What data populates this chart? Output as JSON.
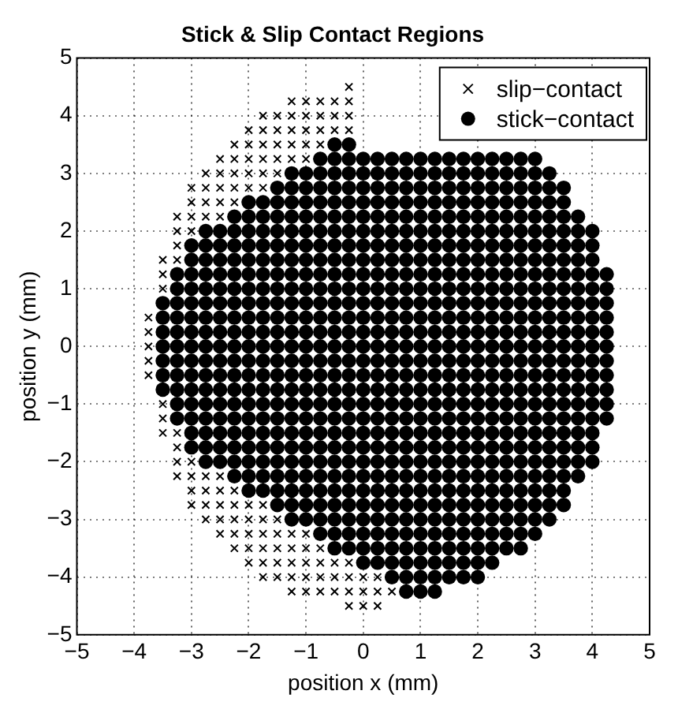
{
  "chart_data": {
    "type": "scatter",
    "title": "Stick & Slip Contact Regions",
    "xlabel": "position x (mm)",
    "ylabel": "position y (mm)",
    "xlim": [
      -5,
      5
    ],
    "ylim": [
      -5,
      5
    ],
    "xticks": [
      -5,
      -4,
      -3,
      -2,
      -1,
      0,
      1,
      2,
      3,
      4,
      5
    ],
    "yticks": [
      -5,
      -4,
      -3,
      -2,
      -1,
      0,
      1,
      2,
      3,
      4,
      5
    ],
    "grid": true,
    "legend": "top right",
    "series": [
      {
        "name": "slip−contact",
        "color": "#000000",
        "marker": "cross",
        "x": [
          -0.25,
          -1.25,
          -1,
          -0.75,
          -0.5,
          -0.25,
          -1.75,
          -1.5,
          -1.25,
          -1,
          -0.75,
          -0.5,
          -0.25,
          -2,
          -1.75,
          -1.5,
          -1.25,
          -1,
          -0.75,
          -0.5,
          -0.25,
          -2.25,
          -2,
          -1.75,
          -1.5,
          -1.25,
          -1,
          -0.75,
          -2.5,
          -2.25,
          -2,
          -1.75,
          -1.5,
          -1.25,
          -1,
          -2.75,
          -2.5,
          -2.25,
          -2,
          -1.75,
          -1.5,
          -3,
          -2.75,
          -2.5,
          -2.25,
          -2,
          -1.75,
          -3,
          -2.75,
          -2.5,
          -2.25,
          -3.25,
          -3,
          -2.75,
          -2.5,
          -3.25,
          -3,
          -3.25,
          -3.5,
          -3.25,
          -3.5,
          -3.5,
          -3.75,
          -3.75,
          -3.75,
          -3.75,
          -3.75,
          -3.5,
          -3.5,
          -3.5,
          -3.25,
          -3.25,
          -3.25,
          -3,
          -3.25,
          -3,
          -2.75,
          -2.5,
          -3,
          -2.75,
          -2.5,
          -2.25,
          -3,
          -2.75,
          -2.5,
          -2.25,
          -2,
          -1.75,
          -2.75,
          -2.5,
          -2.25,
          -2,
          -1.75,
          -1.5,
          -2.5,
          -2.25,
          -2,
          -1.75,
          -1.5,
          -1.25,
          -1,
          -2.25,
          -2,
          -1.75,
          -1.5,
          -1.25,
          -1,
          -0.75,
          -2,
          -1.75,
          -1.5,
          -1.25,
          -1,
          -0.75,
          -0.5,
          -0.25,
          -1.75,
          -1.5,
          -1.25,
          -1,
          -0.75,
          -0.5,
          -0.25,
          0,
          0.25,
          -1.25,
          -1,
          -0.75,
          -0.5,
          -0.25,
          0,
          0.25,
          0.5,
          -0.25,
          0,
          0.25
        ],
        "values": [
          4.5,
          4.25,
          4.25,
          4.25,
          4.25,
          4.25,
          4,
          4,
          4,
          4,
          4,
          4,
          4,
          3.75,
          3.75,
          3.75,
          3.75,
          3.75,
          3.75,
          3.75,
          3.75,
          3.5,
          3.5,
          3.5,
          3.5,
          3.5,
          3.5,
          3.5,
          3.25,
          3.25,
          3.25,
          3.25,
          3.25,
          3.25,
          3.25,
          3,
          3,
          3,
          3,
          3,
          3,
          2.75,
          2.75,
          2.75,
          2.75,
          2.75,
          2.75,
          2.5,
          2.5,
          2.5,
          2.5,
          2.25,
          2.25,
          2.25,
          2.25,
          2,
          2,
          1.75,
          1.5,
          1.5,
          1.25,
          1,
          0.5,
          0.25,
          0,
          -0.25,
          -0.5,
          -1,
          -1.25,
          -1.5,
          -1.5,
          -1.75,
          -2,
          -2,
          -2.25,
          -2.25,
          -2.25,
          -2.25,
          -2.5,
          -2.5,
          -2.5,
          -2.5,
          -2.75,
          -2.75,
          -2.75,
          -2.75,
          -2.75,
          -2.75,
          -3,
          -3,
          -3,
          -3,
          -3,
          -3,
          -3.25,
          -3.25,
          -3.25,
          -3.25,
          -3.25,
          -3.25,
          -3.25,
          -3.5,
          -3.5,
          -3.5,
          -3.5,
          -3.5,
          -3.5,
          -3.5,
          -3.75,
          -3.75,
          -3.75,
          -3.75,
          -3.75,
          -3.75,
          -3.75,
          -3.75,
          -4,
          -4,
          -4,
          -4,
          -4,
          -4,
          -4,
          -4,
          -4,
          -4.25,
          -4.25,
          -4.25,
          -4.25,
          -4.25,
          -4.25,
          -4.25,
          -4.25,
          -4.5,
          -4.5,
          -4.5
        ]
      },
      {
        "name": "stick−contact",
        "color": "#000000",
        "marker": "circle",
        "x": [
          -0.5,
          -0.25,
          -0.75,
          -0.5,
          -0.25,
          0,
          0.25,
          0.5,
          0.75,
          1,
          1.25,
          1.5,
          1.75,
          2,
          2.25,
          2.5,
          2.75,
          3,
          -1.25,
          -1,
          -0.75,
          -0.5,
          -0.25,
          0,
          0.25,
          0.5,
          0.75,
          1,
          1.25,
          1.5,
          1.75,
          2,
          2.25,
          2.5,
          2.75,
          3,
          3.25,
          -1.5,
          -1.25,
          -1,
          -0.75,
          -0.5,
          -0.25,
          0,
          0.25,
          0.5,
          0.75,
          1,
          1.25,
          1.5,
          1.75,
          2,
          2.25,
          2.5,
          2.75,
          3,
          3.25,
          3.5,
          -2,
          -1.75,
          -1.5,
          -1.25,
          -1,
          -0.75,
          -0.5,
          -0.25,
          0,
          0.25,
          0.5,
          0.75,
          1,
          1.25,
          1.5,
          1.75,
          2,
          2.25,
          2.5,
          2.75,
          3,
          3.25,
          3.5,
          -2.25,
          -2,
          -1.75,
          -1.5,
          -1.25,
          -1,
          -0.75,
          -0.5,
          -0.25,
          0,
          0.25,
          0.5,
          0.75,
          1,
          1.25,
          1.5,
          1.75,
          2,
          2.25,
          2.5,
          2.75,
          3,
          3.25,
          3.5,
          3.75,
          -2.75,
          -2.5,
          -2.25,
          -2,
          -1.75,
          -1.5,
          -1.25,
          -1,
          -0.75,
          -0.5,
          -0.25,
          0,
          0.25,
          0.5,
          0.75,
          1,
          1.25,
          1.5,
          1.75,
          2,
          2.25,
          2.5,
          2.75,
          3,
          3.25,
          3.5,
          3.75,
          4,
          -3,
          -2.75,
          -2.5,
          -2.25,
          -2,
          -1.75,
          -1.5,
          -1.25,
          -1,
          -0.75,
          -0.5,
          -0.25,
          0,
          0.25,
          0.5,
          0.75,
          1,
          1.25,
          1.5,
          1.75,
          2,
          2.25,
          2.5,
          2.75,
          3,
          3.25,
          3.5,
          3.75,
          4,
          -3,
          -2.75,
          -2.5,
          -2.25,
          -2,
          -1.75,
          -1.5,
          -1.25,
          -1,
          -0.75,
          -0.5,
          -0.25,
          0,
          0.25,
          0.5,
          0.75,
          1,
          1.25,
          1.5,
          1.75,
          2,
          2.25,
          2.5,
          2.75,
          3,
          3.25,
          3.5,
          3.75,
          4,
          -3.25,
          -3,
          -2.75,
          -2.5,
          -2.25,
          -2,
          -1.75,
          -1.5,
          -1.25,
          -1,
          -0.75,
          -0.5,
          -0.25,
          0,
          0.25,
          0.5,
          0.75,
          1,
          1.25,
          1.5,
          1.75,
          2,
          2.25,
          2.5,
          2.75,
          3,
          3.25,
          3.5,
          3.75,
          4,
          4.25,
          -3.25,
          -3,
          -2.75,
          -2.5,
          -2.25,
          -2,
          -1.75,
          -1.5,
          -1.25,
          -1,
          -0.75,
          -0.5,
          -0.25,
          0,
          0.25,
          0.5,
          0.75,
          1,
          1.25,
          1.5,
          1.75,
          2,
          2.25,
          2.5,
          2.75,
          3,
          3.25,
          3.5,
          3.75,
          4,
          4.25,
          -3.5,
          -3.25,
          -3,
          -2.75,
          -2.5,
          -2.25,
          -2,
          -1.75,
          -1.5,
          -1.25,
          -1,
          -0.75,
          -0.5,
          -0.25,
          0,
          0.25,
          0.5,
          0.75,
          1,
          1.25,
          1.5,
          1.75,
          2,
          2.25,
          2.5,
          2.75,
          3,
          3.25,
          3.5,
          3.75,
          4,
          4.25,
          -3.5,
          -3.25,
          -3,
          -2.75,
          -2.5,
          -2.25,
          -2,
          -1.75,
          -1.5,
          -1.25,
          -1,
          -0.75,
          -0.5,
          -0.25,
          0,
          0.25,
          0.5,
          0.75,
          1,
          1.25,
          1.5,
          1.75,
          2,
          2.25,
          2.5,
          2.75,
          3,
          3.25,
          3.5,
          3.75,
          4,
          4.25,
          -3.5,
          -3.25,
          -3,
          -2.75,
          -2.5,
          -2.25,
          -2,
          -1.75,
          -1.5,
          -1.25,
          -1,
          -0.75,
          -0.5,
          -0.25,
          0,
          0.25,
          0.5,
          0.75,
          1,
          1.25,
          1.5,
          1.75,
          2,
          2.25,
          2.5,
          2.75,
          3,
          3.25,
          3.5,
          3.75,
          4,
          4.25,
          -3.5,
          -3.25,
          -3,
          -2.75,
          -2.5,
          -2.25,
          -2,
          -1.75,
          -1.5,
          -1.25,
          -1,
          -0.75,
          -0.5,
          -0.25,
          0,
          0.25,
          0.5,
          0.75,
          1,
          1.25,
          1.5,
          1.75,
          2,
          2.25,
          2.5,
          2.75,
          3,
          3.25,
          3.5,
          3.75,
          4,
          4.25,
          -3.5,
          -3.25,
          -3,
          -2.75,
          -2.5,
          -2.25,
          -2,
          -1.75,
          -1.5,
          -1.25,
          -1,
          -0.75,
          -0.5,
          -0.25,
          0,
          0.25,
          0.5,
          0.75,
          1,
          1.25,
          1.5,
          1.75,
          2,
          2.25,
          2.5,
          2.75,
          3,
          3.25,
          3.5,
          3.75,
          4,
          4.25,
          -3.5,
          -3.25,
          -3,
          -2.75,
          -2.5,
          -2.25,
          -2,
          -1.75,
          -1.5,
          -1.25,
          -1,
          -0.75,
          -0.5,
          -0.25,
          0,
          0.25,
          0.5,
          0.75,
          1,
          1.25,
          1.5,
          1.75,
          2,
          2.25,
          2.5,
          2.75,
          3,
          3.25,
          3.5,
          3.75,
          4,
          4.25,
          -3.5,
          -3.25,
          -3,
          -2.75,
          -2.5,
          -2.25,
          -2,
          -1.75,
          -1.5,
          -1.25,
          -1,
          -0.75,
          -0.5,
          -0.25,
          0,
          0.25,
          0.5,
          0.75,
          1,
          1.25,
          1.5,
          1.75,
          2,
          2.25,
          2.5,
          2.75,
          3,
          3.25,
          3.5,
          3.75,
          4,
          4.25,
          -3.25,
          -3,
          -2.75,
          -2.5,
          -2.25,
          -2,
          -1.75,
          -1.5,
          -1.25,
          -1,
          -0.75,
          -0.5,
          -0.25,
          0,
          0.25,
          0.5,
          0.75,
          1,
          1.25,
          1.5,
          1.75,
          2,
          2.25,
          2.5,
          2.75,
          3,
          3.25,
          3.5,
          3.75,
          4,
          4.25,
          -3.25,
          -3,
          -2.75,
          -2.5,
          -2.25,
          -2,
          -1.75,
          -1.5,
          -1.25,
          -1,
          -0.75,
          -0.5,
          -0.25,
          0,
          0.25,
          0.5,
          0.75,
          1,
          1.25,
          1.5,
          1.75,
          2,
          2.25,
          2.5,
          2.75,
          3,
          3.25,
          3.5,
          3.75,
          4,
          4.25,
          -3,
          -2.75,
          -2.5,
          -2.25,
          -2,
          -1.75,
          -1.5,
          -1.25,
          -1,
          -0.75,
          -0.5,
          -0.25,
          0,
          0.25,
          0.5,
          0.75,
          1,
          1.25,
          1.5,
          1.75,
          2,
          2.25,
          2.5,
          2.75,
          3,
          3.25,
          3.5,
          3.75,
          4,
          -3,
          -2.75,
          -2.5,
          -2.25,
          -2,
          -1.75,
          -1.5,
          -1.25,
          -1,
          -0.75,
          -0.5,
          -0.25,
          0,
          0.25,
          0.5,
          0.75,
          1,
          1.25,
          1.5,
          1.75,
          2,
          2.25,
          2.5,
          2.75,
          3,
          3.25,
          3.5,
          3.75,
          4,
          -2.75,
          -2.5,
          -2.25,
          -2,
          -1.75,
          -1.5,
          -1.25,
          -1,
          -0.75,
          -0.5,
          -0.25,
          0,
          0.25,
          0.5,
          0.75,
          1,
          1.25,
          1.5,
          1.75,
          2,
          2.25,
          2.5,
          2.75,
          3,
          3.25,
          3.5,
          3.75,
          4,
          -2.25,
          -2,
          -1.75,
          -1.5,
          -1.25,
          -1,
          -0.75,
          -0.5,
          -0.25,
          0,
          0.25,
          0.5,
          0.75,
          1,
          1.25,
          1.5,
          1.75,
          2,
          2.25,
          2.5,
          2.75,
          3,
          3.25,
          3.5,
          3.75,
          -2,
          -1.75,
          -1.5,
          -1.25,
          -1,
          -0.75,
          -0.5,
          -0.25,
          0,
          0.25,
          0.5,
          0.75,
          1,
          1.25,
          1.5,
          1.75,
          2,
          2.25,
          2.5,
          2.75,
          3,
          3.25,
          3.5,
          -1.5,
          -1.25,
          -1,
          -0.75,
          -0.5,
          -0.25,
          0,
          0.25,
          0.5,
          0.75,
          1,
          1.25,
          1.5,
          1.75,
          2,
          2.25,
          2.5,
          2.75,
          3,
          3.25,
          3.5,
          -1.25,
          -1,
          -0.75,
          -0.5,
          -0.25,
          0,
          0.25,
          0.5,
          0.75,
          1,
          1.25,
          1.5,
          1.75,
          2,
          2.25,
          2.5,
          2.75,
          3,
          3.25,
          -0.75,
          -0.5,
          -0.25,
          0,
          0.25,
          0.5,
          0.75,
          1,
          1.25,
          1.5,
          1.75,
          2,
          2.25,
          2.5,
          2.75,
          3,
          -0.5,
          -0.25,
          0,
          0.25,
          0.5,
          0.75,
          1,
          1.25,
          1.5,
          1.75,
          2,
          2.25,
          2.5,
          2.75,
          0,
          0.25,
          0.5,
          0.75,
          1,
          1.25,
          1.5,
          1.75,
          2,
          2.25,
          0.5,
          0.75,
          1,
          1.25,
          1.5,
          1.75,
          2,
          0.75,
          1,
          1.25
        ],
        "values": [
          3.5,
          3.5,
          3.25,
          3.25,
          3.25,
          3.25,
          3.25,
          3.25,
          3.25,
          3.25,
          3.25,
          3.25,
          3.25,
          3.25,
          3.25,
          3.25,
          3.25,
          3.25,
          3,
          3,
          3,
          3,
          3,
          3,
          3,
          3,
          3,
          3,
          3,
          3,
          3,
          3,
          3,
          3,
          3,
          3,
          3,
          2.75,
          2.75,
          2.75,
          2.75,
          2.75,
          2.75,
          2.75,
          2.75,
          2.75,
          2.75,
          2.75,
          2.75,
          2.75,
          2.75,
          2.75,
          2.75,
          2.75,
          2.75,
          2.75,
          2.75,
          2.75,
          2.5,
          2.5,
          2.5,
          2.5,
          2.5,
          2.5,
          2.5,
          2.5,
          2.5,
          2.5,
          2.5,
          2.5,
          2.5,
          2.5,
          2.5,
          2.5,
          2.5,
          2.5,
          2.5,
          2.5,
          2.5,
          2.5,
          2.5,
          2.25,
          2.25,
          2.25,
          2.25,
          2.25,
          2.25,
          2.25,
          2.25,
          2.25,
          2.25,
          2.25,
          2.25,
          2.25,
          2.25,
          2.25,
          2.25,
          2.25,
          2.25,
          2.25,
          2.25,
          2.25,
          2.25,
          2.25,
          2.25,
          2.25,
          2,
          2,
          2,
          2,
          2,
          2,
          2,
          2,
          2,
          2,
          2,
          2,
          2,
          2,
          2,
          2,
          2,
          2,
          2,
          2,
          2,
          2,
          2,
          2,
          2,
          2,
          2,
          2,
          1.75,
          1.75,
          1.75,
          1.75,
          1.75,
          1.75,
          1.75,
          1.75,
          1.75,
          1.75,
          1.75,
          1.75,
          1.75,
          1.75,
          1.75,
          1.75,
          1.75,
          1.75,
          1.75,
          1.75,
          1.75,
          1.75,
          1.75,
          1.75,
          1.75,
          1.75,
          1.75,
          1.75,
          1.75,
          1.5,
          1.5,
          1.5,
          1.5,
          1.5,
          1.5,
          1.5,
          1.5,
          1.5,
          1.5,
          1.5,
          1.5,
          1.5,
          1.5,
          1.5,
          1.5,
          1.5,
          1.5,
          1.5,
          1.5,
          1.5,
          1.5,
          1.5,
          1.5,
          1.5,
          1.5,
          1.5,
          1.5,
          1.5,
          1.25,
          1.25,
          1.25,
          1.25,
          1.25,
          1.25,
          1.25,
          1.25,
          1.25,
          1.25,
          1.25,
          1.25,
          1.25,
          1.25,
          1.25,
          1.25,
          1.25,
          1.25,
          1.25,
          1.25,
          1.25,
          1.25,
          1.25,
          1.25,
          1.25,
          1.25,
          1.25,
          1.25,
          1.25,
          1.25,
          1.25,
          1,
          1,
          1,
          1,
          1,
          1,
          1,
          1,
          1,
          1,
          1,
          1,
          1,
          1,
          1,
          1,
          1,
          1,
          1,
          1,
          1,
          1,
          1,
          1,
          1,
          1,
          1,
          1,
          1,
          1,
          1,
          0.75,
          0.75,
          0.75,
          0.75,
          0.75,
          0.75,
          0.75,
          0.75,
          0.75,
          0.75,
          0.75,
          0.75,
          0.75,
          0.75,
          0.75,
          0.75,
          0.75,
          0.75,
          0.75,
          0.75,
          0.75,
          0.75,
          0.75,
          0.75,
          0.75,
          0.75,
          0.75,
          0.75,
          0.75,
          0.75,
          0.75,
          0.75,
          0.5,
          0.5,
          0.5,
          0.5,
          0.5,
          0.5,
          0.5,
          0.5,
          0.5,
          0.5,
          0.5,
          0.5,
          0.5,
          0.5,
          0.5,
          0.5,
          0.5,
          0.5,
          0.5,
          0.5,
          0.5,
          0.5,
          0.5,
          0.5,
          0.5,
          0.5,
          0.5,
          0.5,
          0.5,
          0.5,
          0.5,
          0.5,
          0.25,
          0.25,
          0.25,
          0.25,
          0.25,
          0.25,
          0.25,
          0.25,
          0.25,
          0.25,
          0.25,
          0.25,
          0.25,
          0.25,
          0.25,
          0.25,
          0.25,
          0.25,
          0.25,
          0.25,
          0.25,
          0.25,
          0.25,
          0.25,
          0.25,
          0.25,
          0.25,
          0.25,
          0.25,
          0.25,
          0.25,
          0.25,
          0,
          0,
          0,
          0,
          0,
          0,
          0,
          0,
          0,
          0,
          0,
          0,
          0,
          0,
          0,
          0,
          0,
          0,
          0,
          0,
          0,
          0,
          0,
          0,
          0,
          0,
          0,
          0,
          0,
          0,
          0,
          0,
          -0.25,
          -0.25,
          -0.25,
          -0.25,
          -0.25,
          -0.25,
          -0.25,
          -0.25,
          -0.25,
          -0.25,
          -0.25,
          -0.25,
          -0.25,
          -0.25,
          -0.25,
          -0.25,
          -0.25,
          -0.25,
          -0.25,
          -0.25,
          -0.25,
          -0.25,
          -0.25,
          -0.25,
          -0.25,
          -0.25,
          -0.25,
          -0.25,
          -0.25,
          -0.25,
          -0.25,
          -0.25,
          -0.5,
          -0.5,
          -0.5,
          -0.5,
          -0.5,
          -0.5,
          -0.5,
          -0.5,
          -0.5,
          -0.5,
          -0.5,
          -0.5,
          -0.5,
          -0.5,
          -0.5,
          -0.5,
          -0.5,
          -0.5,
          -0.5,
          -0.5,
          -0.5,
          -0.5,
          -0.5,
          -0.5,
          -0.5,
          -0.5,
          -0.5,
          -0.5,
          -0.5,
          -0.5,
          -0.5,
          -0.5,
          -0.75,
          -0.75,
          -0.75,
          -0.75,
          -0.75,
          -0.75,
          -0.75,
          -0.75,
          -0.75,
          -0.75,
          -0.75,
          -0.75,
          -0.75,
          -0.75,
          -0.75,
          -0.75,
          -0.75,
          -0.75,
          -0.75,
          -0.75,
          -0.75,
          -0.75,
          -0.75,
          -0.75,
          -0.75,
          -0.75,
          -0.75,
          -0.75,
          -0.75,
          -0.75,
          -0.75,
          -0.75,
          -1,
          -1,
          -1,
          -1,
          -1,
          -1,
          -1,
          -1,
          -1,
          -1,
          -1,
          -1,
          -1,
          -1,
          -1,
          -1,
          -1,
          -1,
          -1,
          -1,
          -1,
          -1,
          -1,
          -1,
          -1,
          -1,
          -1,
          -1,
          -1,
          -1,
          -1,
          -1.25,
          -1.25,
          -1.25,
          -1.25,
          -1.25,
          -1.25,
          -1.25,
          -1.25,
          -1.25,
          -1.25,
          -1.25,
          -1.25,
          -1.25,
          -1.25,
          -1.25,
          -1.25,
          -1.25,
          -1.25,
          -1.25,
          -1.25,
          -1.25,
          -1.25,
          -1.25,
          -1.25,
          -1.25,
          -1.25,
          -1.25,
          -1.25,
          -1.25,
          -1.25,
          -1.25,
          -1.5,
          -1.5,
          -1.5,
          -1.5,
          -1.5,
          -1.5,
          -1.5,
          -1.5,
          -1.5,
          -1.5,
          -1.5,
          -1.5,
          -1.5,
          -1.5,
          -1.5,
          -1.5,
          -1.5,
          -1.5,
          -1.5,
          -1.5,
          -1.5,
          -1.5,
          -1.5,
          -1.5,
          -1.5,
          -1.5,
          -1.5,
          -1.5,
          -1.5,
          -1.75,
          -1.75,
          -1.75,
          -1.75,
          -1.75,
          -1.75,
          -1.75,
          -1.75,
          -1.75,
          -1.75,
          -1.75,
          -1.75,
          -1.75,
          -1.75,
          -1.75,
          -1.75,
          -1.75,
          -1.75,
          -1.75,
          -1.75,
          -1.75,
          -1.75,
          -1.75,
          -1.75,
          -1.75,
          -1.75,
          -1.75,
          -1.75,
          -1.75,
          -2,
          -2,
          -2,
          -2,
          -2,
          -2,
          -2,
          -2,
          -2,
          -2,
          -2,
          -2,
          -2,
          -2,
          -2,
          -2,
          -2,
          -2,
          -2,
          -2,
          -2,
          -2,
          -2,
          -2,
          -2,
          -2,
          -2,
          -2,
          -2.25,
          -2.25,
          -2.25,
          -2.25,
          -2.25,
          -2.25,
          -2.25,
          -2.25,
          -2.25,
          -2.25,
          -2.25,
          -2.25,
          -2.25,
          -2.25,
          -2.25,
          -2.25,
          -2.25,
          -2.25,
          -2.25,
          -2.25,
          -2.25,
          -2.25,
          -2.25,
          -2.25,
          -2.25,
          -2.5,
          -2.5,
          -2.5,
          -2.5,
          -2.5,
          -2.5,
          -2.5,
          -2.5,
          -2.5,
          -2.5,
          -2.5,
          -2.5,
          -2.5,
          -2.5,
          -2.5,
          -2.5,
          -2.5,
          -2.5,
          -2.5,
          -2.5,
          -2.5,
          -2.5,
          -2.5,
          -2.75,
          -2.75,
          -2.75,
          -2.75,
          -2.75,
          -2.75,
          -2.75,
          -2.75,
          -2.75,
          -2.75,
          -2.75,
          -2.75,
          -2.75,
          -2.75,
          -2.75,
          -2.75,
          -2.75,
          -2.75,
          -2.75,
          -2.75,
          -2.75,
          -3,
          -3,
          -3,
          -3,
          -3,
          -3,
          -3,
          -3,
          -3,
          -3,
          -3,
          -3,
          -3,
          -3,
          -3,
          -3,
          -3,
          -3,
          -3,
          -3.25,
          -3.25,
          -3.25,
          -3.25,
          -3.25,
          -3.25,
          -3.25,
          -3.25,
          -3.25,
          -3.25,
          -3.25,
          -3.25,
          -3.25,
          -3.25,
          -3.25,
          -3.25,
          -3.5,
          -3.5,
          -3.5,
          -3.5,
          -3.5,
          -3.5,
          -3.5,
          -3.5,
          -3.5,
          -3.5,
          -3.5,
          -3.5,
          -3.5,
          -3.5,
          -3.75,
          -3.75,
          -3.75,
          -3.75,
          -3.75,
          -3.75,
          -3.75,
          -3.75,
          -3.75,
          -3.75,
          -4,
          -4,
          -4,
          -4,
          -4,
          -4,
          -4,
          -4.25,
          -4.25,
          -4.25
        ]
      }
    ]
  }
}
